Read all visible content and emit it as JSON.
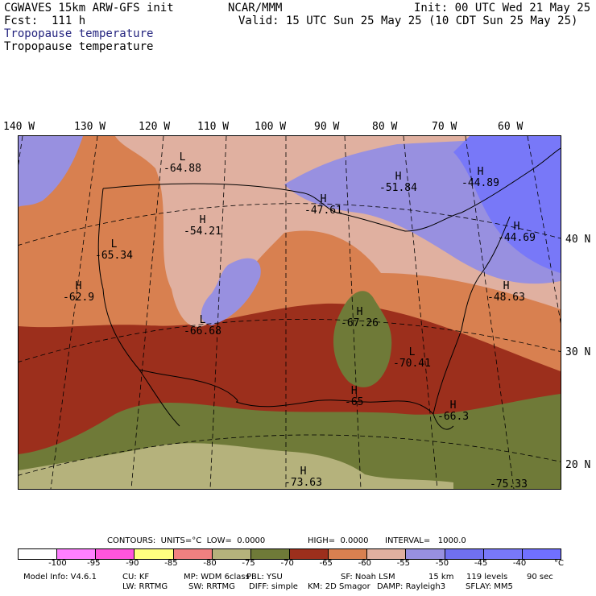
{
  "header": {
    "model": "CGWAVES 15km ARW-GFS init",
    "org": "NCAR/MMM",
    "init": "Init: 00 UTC Wed 21 May 25",
    "fcst": "Fcst:  111 h",
    "valid": "Valid: 15 UTC Sun 25 May 25 (10 CDT Sun 25 May 25)",
    "field1": "Tropopause temperature",
    "field2": "Tropopause temperature"
  },
  "longitudes": [
    "140 W",
    "130 W",
    "120 W",
    "110 W",
    "100 W",
    "90 W",
    "80 W",
    "70 W",
    "60 W"
  ],
  "latitudes": [
    "40 N",
    "30 N",
    "20 N"
  ],
  "labels": [
    {
      "letter": "L",
      "value": "-64.88"
    },
    {
      "letter": "H",
      "value": "-51.84"
    },
    {
      "letter": "H",
      "value": "-44.89"
    },
    {
      "letter": "H",
      "value": "-47.61"
    },
    {
      "letter": "H",
      "value": "-54.21"
    },
    {
      "letter": "H",
      "value": "-44.69"
    },
    {
      "letter": "L",
      "value": "-65.34"
    },
    {
      "letter": "H",
      "value": "-62.9"
    },
    {
      "letter": "H",
      "value": "-48.63"
    },
    {
      "letter": "L",
      "value": "-66.68"
    },
    {
      "letter": "H",
      "value": "-67.26"
    },
    {
      "letter": "L",
      "value": "-70.41"
    },
    {
      "letter": "H",
      "value": "-65"
    },
    {
      "letter": "H",
      "value": "-66.3"
    },
    {
      "letter": "H",
      "value": "-73.63"
    },
    {
      "letter": "",
      "value": "-75.33"
    }
  ],
  "contours": {
    "text1": "CONTOURS:  UNITS=°C  LOW=  0.0000",
    "text2": "HIGH=  0.0000",
    "text3": "INTERVAL=   1000.0"
  },
  "colorbar": {
    "colors": [
      "#ffffff",
      "#ff80ff",
      "#ff55dd",
      "#ffff80",
      "#f08080",
      "#b5b27c",
      "#6f7a38",
      "#9c2f1c",
      "#d88050",
      "#e0b0a0",
      "#9890e0",
      "#7070f0",
      "#7878f8",
      "#7070ff"
    ],
    "ticks": [
      "-100",
      "-95",
      "-90",
      "-85",
      "-80",
      "-75",
      "-70",
      "-65",
      "-60",
      "-55",
      "-50",
      "-45",
      "-40"
    ],
    "unit": "°C"
  },
  "footer": {
    "line1": [
      "Model Info: V4.6.1",
      "CU: KF",
      "MP: WDM 6class",
      "PBL: YSU",
      "SF: Noah LSM",
      "15 km",
      "119 levels",
      "90 sec"
    ],
    "line2": [
      "LW: RRTMG",
      "SW: RRTMG",
      "DIFF: simple",
      "KM: 2D Smagor",
      "DAMP: Rayleigh3",
      "SFLAY: MM5"
    ]
  }
}
